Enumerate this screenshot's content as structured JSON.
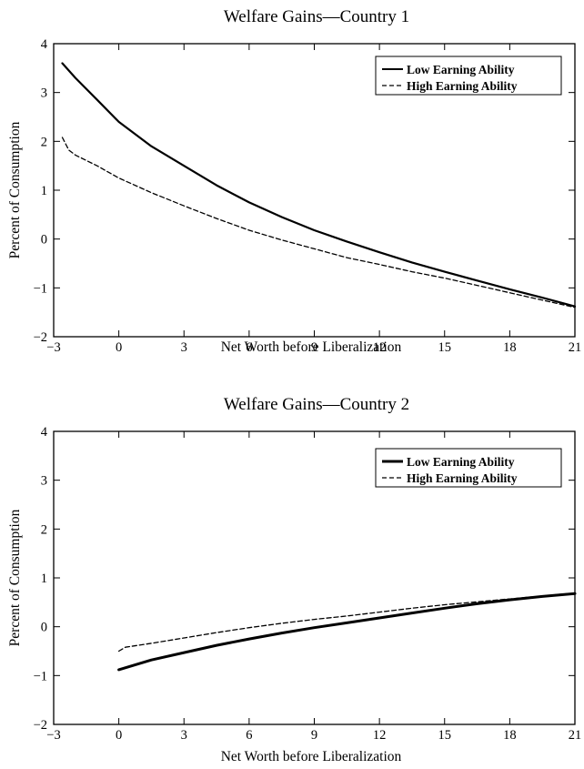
{
  "chart_data": [
    {
      "type": "line",
      "title": "Welfare Gains—Country 1",
      "xlabel": "Net Worth before Liberalization",
      "ylabel": "Percent of Consumption",
      "xlim": [
        -3,
        21
      ],
      "ylim": [
        -2,
        4
      ],
      "xticks": [
        -3,
        0,
        3,
        6,
        9,
        12,
        15,
        18,
        21
      ],
      "yticks": [
        -2,
        -1,
        0,
        1,
        2,
        3,
        4
      ],
      "grid": false,
      "legend_position": "top-right",
      "series": [
        {
          "name": "Low Earning Ability",
          "style": "solid-thick",
          "x": [
            -2.6,
            -2,
            -1,
            0,
            1.5,
            3,
            4.5,
            6,
            7.5,
            9,
            10.5,
            12,
            13.5,
            15,
            16.5,
            18,
            19.5,
            21
          ],
          "y": [
            3.6,
            3.3,
            2.85,
            2.4,
            1.9,
            1.5,
            1.1,
            0.75,
            0.45,
            0.18,
            -0.05,
            -0.27,
            -0.48,
            -0.67,
            -0.85,
            -1.03,
            -1.2,
            -1.38
          ]
        },
        {
          "name": "High Earning Ability",
          "style": "dashed",
          "x": [
            -2.6,
            -2.3,
            -2,
            -1,
            0,
            1.5,
            3,
            4.5,
            6,
            7.5,
            9,
            10.5,
            12,
            13.5,
            15,
            16.5,
            18,
            19.5,
            21
          ],
          "y": [
            2.08,
            1.82,
            1.72,
            1.5,
            1.25,
            0.95,
            0.68,
            0.42,
            0.18,
            -0.02,
            -0.2,
            -0.38,
            -0.52,
            -0.67,
            -0.8,
            -0.95,
            -1.1,
            -1.25,
            -1.4
          ]
        }
      ]
    },
    {
      "type": "line",
      "title": "Welfare Gains—Country 2",
      "xlabel": "Net Worth before Liberalization",
      "ylabel": "Percent of Consumption",
      "xlim": [
        -3,
        21
      ],
      "ylim": [
        -2,
        4
      ],
      "xticks": [
        -3,
        0,
        3,
        6,
        9,
        12,
        15,
        18,
        21
      ],
      "yticks": [
        -2,
        -1,
        0,
        1,
        2,
        3,
        4
      ],
      "grid": false,
      "legend_position": "top-right",
      "series": [
        {
          "name": "Low Earning Ability",
          "style": "solid-thick",
          "x": [
            0,
            1.5,
            3,
            4.5,
            6,
            7.5,
            9,
            10.5,
            12,
            13.5,
            15,
            16.5,
            18,
            19.5,
            21
          ],
          "y": [
            -0.88,
            -0.68,
            -0.53,
            -0.38,
            -0.25,
            -0.13,
            -0.02,
            0.08,
            0.18,
            0.28,
            0.38,
            0.47,
            0.55,
            0.62,
            0.68
          ]
        },
        {
          "name": "High Earning Ability",
          "style": "dashed",
          "x": [
            0,
            0.3,
            1.5,
            3,
            4.5,
            6,
            7.5,
            9,
            10.5,
            12,
            13.5,
            15,
            16.5,
            18,
            19.5,
            21
          ],
          "y": [
            -0.5,
            -0.42,
            -0.34,
            -0.23,
            -0.12,
            -0.02,
            0.07,
            0.15,
            0.22,
            0.3,
            0.38,
            0.45,
            0.51,
            0.57,
            0.63,
            0.69
          ]
        }
      ]
    }
  ]
}
